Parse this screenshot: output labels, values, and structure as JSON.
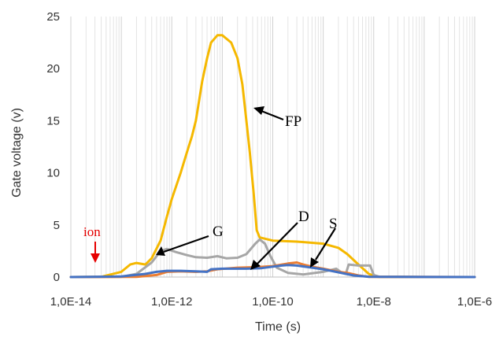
{
  "chart_data": {
    "type": "line",
    "xlabel": "Time (s)",
    "ylabel": "Gate voltage (v)",
    "x_scale": "log",
    "xlim": [
      1e-14,
      1e-06
    ],
    "ylim": [
      0,
      25
    ],
    "x_tick_labels": [
      "1,0E-14",
      "1,0E-12",
      "1,0E-10",
      "1,0E-8",
      "1,0E-6"
    ],
    "y_tick_labels": [
      "0",
      "5",
      "10",
      "15",
      "20",
      "25"
    ],
    "y_ticks": [
      0,
      5,
      10,
      15,
      20,
      25
    ],
    "grid": "vertical-minor",
    "legend": "none",
    "series": [
      {
        "name": "FP",
        "color": "#f5b800",
        "points": [
          [
            1e-14,
            0
          ],
          [
            4e-14,
            0.02
          ],
          [
            1e-13,
            0.5
          ],
          [
            1.5e-13,
            1.2
          ],
          [
            2e-13,
            1.35
          ],
          [
            3e-13,
            1.2
          ],
          [
            4e-13,
            1.8
          ],
          [
            6e-13,
            3.5
          ],
          [
            8e-13,
            5.8
          ],
          [
            1e-12,
            7.5
          ],
          [
            1.5e-12,
            10
          ],
          [
            2e-12,
            12
          ],
          [
            2.5e-12,
            13.5
          ],
          [
            3e-12,
            15
          ],
          [
            3.5e-12,
            17
          ],
          [
            4e-12,
            18.8
          ],
          [
            5e-12,
            21
          ],
          [
            6e-12,
            22.5
          ],
          [
            8e-12,
            23.2
          ],
          [
            1e-11,
            23.2
          ],
          [
            1.5e-11,
            22.5
          ],
          [
            2e-11,
            21
          ],
          [
            2.5e-11,
            18.5
          ],
          [
            3e-11,
            15
          ],
          [
            3.5e-11,
            12
          ],
          [
            4.2e-11,
            8
          ],
          [
            4.8e-11,
            4.5
          ],
          [
            5.5e-11,
            3.8
          ],
          [
            1e-10,
            3.5
          ],
          [
            3e-10,
            3.4
          ],
          [
            1e-09,
            3.2
          ],
          [
            2e-09,
            2.8
          ],
          [
            3e-09,
            2.2
          ],
          [
            5e-09,
            1.2
          ],
          [
            8e-09,
            0.3
          ],
          [
            1.2e-08,
            0.02
          ],
          [
            1e-07,
            0
          ],
          [
            1e-06,
            0
          ]
        ]
      },
      {
        "name": "G",
        "color": "#a6a6a6",
        "points": [
          [
            1e-14,
            0
          ],
          [
            1e-13,
            0.02
          ],
          [
            2e-13,
            0.3
          ],
          [
            4e-13,
            1.4
          ],
          [
            6e-13,
            2.5
          ],
          [
            8e-13,
            2.7
          ],
          [
            1.2e-12,
            2.4
          ],
          [
            2e-12,
            2.1
          ],
          [
            3e-12,
            1.9
          ],
          [
            5e-12,
            1.85
          ],
          [
            8e-12,
            2
          ],
          [
            1.2e-11,
            1.8
          ],
          [
            2e-11,
            1.85
          ],
          [
            3e-11,
            2.2
          ],
          [
            4.5e-11,
            3.2
          ],
          [
            5.5e-11,
            3.6
          ],
          [
            7e-11,
            3.2
          ],
          [
            9e-11,
            2
          ],
          [
            1.2e-10,
            0.9
          ],
          [
            2e-10,
            0.4
          ],
          [
            4e-10,
            0.25
          ],
          [
            1e-09,
            0.5
          ],
          [
            1.8e-09,
            0.8
          ],
          [
            2.2e-09,
            0.5
          ],
          [
            2.8e-09,
            0.3
          ],
          [
            3.2e-09,
            1.2
          ],
          [
            5e-09,
            1.1
          ],
          [
            7e-09,
            1.1
          ],
          [
            8.5e-09,
            1.1
          ],
          [
            1e-08,
            0.2
          ],
          [
            1.3e-08,
            0.02
          ],
          [
            1e-07,
            0
          ],
          [
            1e-06,
            0
          ]
        ]
      },
      {
        "name": "D",
        "color": "#ed7d31",
        "points": [
          [
            1e-14,
            0
          ],
          [
            2e-13,
            0.02
          ],
          [
            5e-13,
            0.2
          ],
          [
            8e-13,
            0.5
          ],
          [
            1.5e-12,
            0.55
          ],
          [
            3e-12,
            0.5
          ],
          [
            5e-12,
            0.55
          ],
          [
            8e-12,
            0.75
          ],
          [
            2e-11,
            0.9
          ],
          [
            5e-11,
            0.95
          ],
          [
            1e-10,
            1.05
          ],
          [
            2e-10,
            1.3
          ],
          [
            3e-10,
            1.4
          ],
          [
            4e-10,
            1.2
          ],
          [
            6e-10,
            1.0
          ],
          [
            1e-09,
            0.8
          ],
          [
            2e-09,
            0.5
          ],
          [
            3e-09,
            0.4
          ],
          [
            5e-09,
            0.15
          ],
          [
            8e-09,
            0.02
          ],
          [
            1e-06,
            0
          ]
        ]
      },
      {
        "name": "S",
        "color": "#4472c4",
        "points": [
          [
            1e-14,
            0
          ],
          [
            1e-13,
            0.05
          ],
          [
            3e-13,
            0.3
          ],
          [
            5e-13,
            0.5
          ],
          [
            8e-13,
            0.6
          ],
          [
            1.5e-12,
            0.6
          ],
          [
            3e-12,
            0.55
          ],
          [
            5e-12,
            0.5
          ],
          [
            6e-12,
            0.75
          ],
          [
            1e-11,
            0.8
          ],
          [
            3e-11,
            0.8
          ],
          [
            6e-11,
            0.85
          ],
          [
            1e-10,
            1.0
          ],
          [
            1.5e-10,
            1.1
          ],
          [
            2e-10,
            1.15
          ],
          [
            3e-10,
            1.1
          ],
          [
            5e-10,
            0.95
          ],
          [
            1e-09,
            0.75
          ],
          [
            2e-09,
            0.45
          ],
          [
            4e-09,
            0.15
          ],
          [
            8e-09,
            0.03
          ],
          [
            1e-07,
            0.01
          ],
          [
            1e-06,
            0
          ]
        ]
      }
    ],
    "annotations": [
      {
        "text": "FP",
        "color": "#000000"
      },
      {
        "text": "G",
        "color": "#000000"
      },
      {
        "text": "D",
        "color": "#000000"
      },
      {
        "text": "S",
        "color": "#000000"
      },
      {
        "text": "ion",
        "color": "#e60000"
      }
    ]
  }
}
